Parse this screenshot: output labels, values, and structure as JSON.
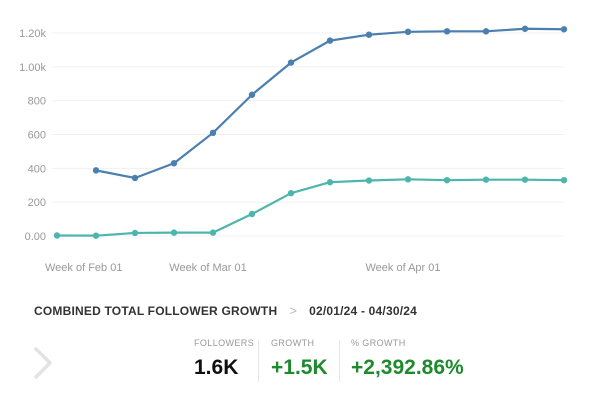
{
  "chart_data": {
    "type": "line",
    "x": [
      "2024-02-01",
      "2024-02-08",
      "2024-02-15",
      "2024-02-22",
      "2024-02-29",
      "2024-03-07",
      "2024-03-14",
      "2024-03-21",
      "2024-03-28",
      "2024-04-04",
      "2024-04-11",
      "2024-04-18",
      "2024-04-25",
      "2024-04-30"
    ],
    "x_tick_labels": [
      "Week of Feb 01",
      "Week of Mar 01",
      "Week of Apr 01"
    ],
    "y_tick_labels": [
      "0.00",
      "200",
      "400",
      "600",
      "800",
      "1.00k",
      "1.20k"
    ],
    "ylim": [
      0,
      1200
    ],
    "grid": true,
    "series": [
      {
        "color": "#4a7fb0",
        "values": [
          null,
          388,
          343,
          430,
          610,
          835,
          1025,
          1155,
          1190,
          1207,
          1210,
          1210,
          1225,
          1222
        ]
      },
      {
        "color": "#4db6ac",
        "values": [
          3,
          2,
          18,
          20,
          20,
          130,
          253,
          318,
          328,
          335,
          330,
          333,
          333,
          330
        ]
      }
    ]
  },
  "summary": {
    "title": "COMBINED TOTAL FOLLOWER GROWTH",
    "separator": ">",
    "date_range": "02/01/24 - 04/30/24"
  },
  "stats": [
    {
      "label": "FOLLOWERS",
      "value": "1.6K",
      "color": "#111111"
    },
    {
      "label": "GROWTH",
      "value": "+1.5K",
      "color": "#1e8a2e"
    },
    {
      "label": "% GROWTH",
      "value": "+2,392.86%",
      "color": "#1e8a2e"
    }
  ],
  "icons": {
    "prev": "chevron-right-icon"
  }
}
